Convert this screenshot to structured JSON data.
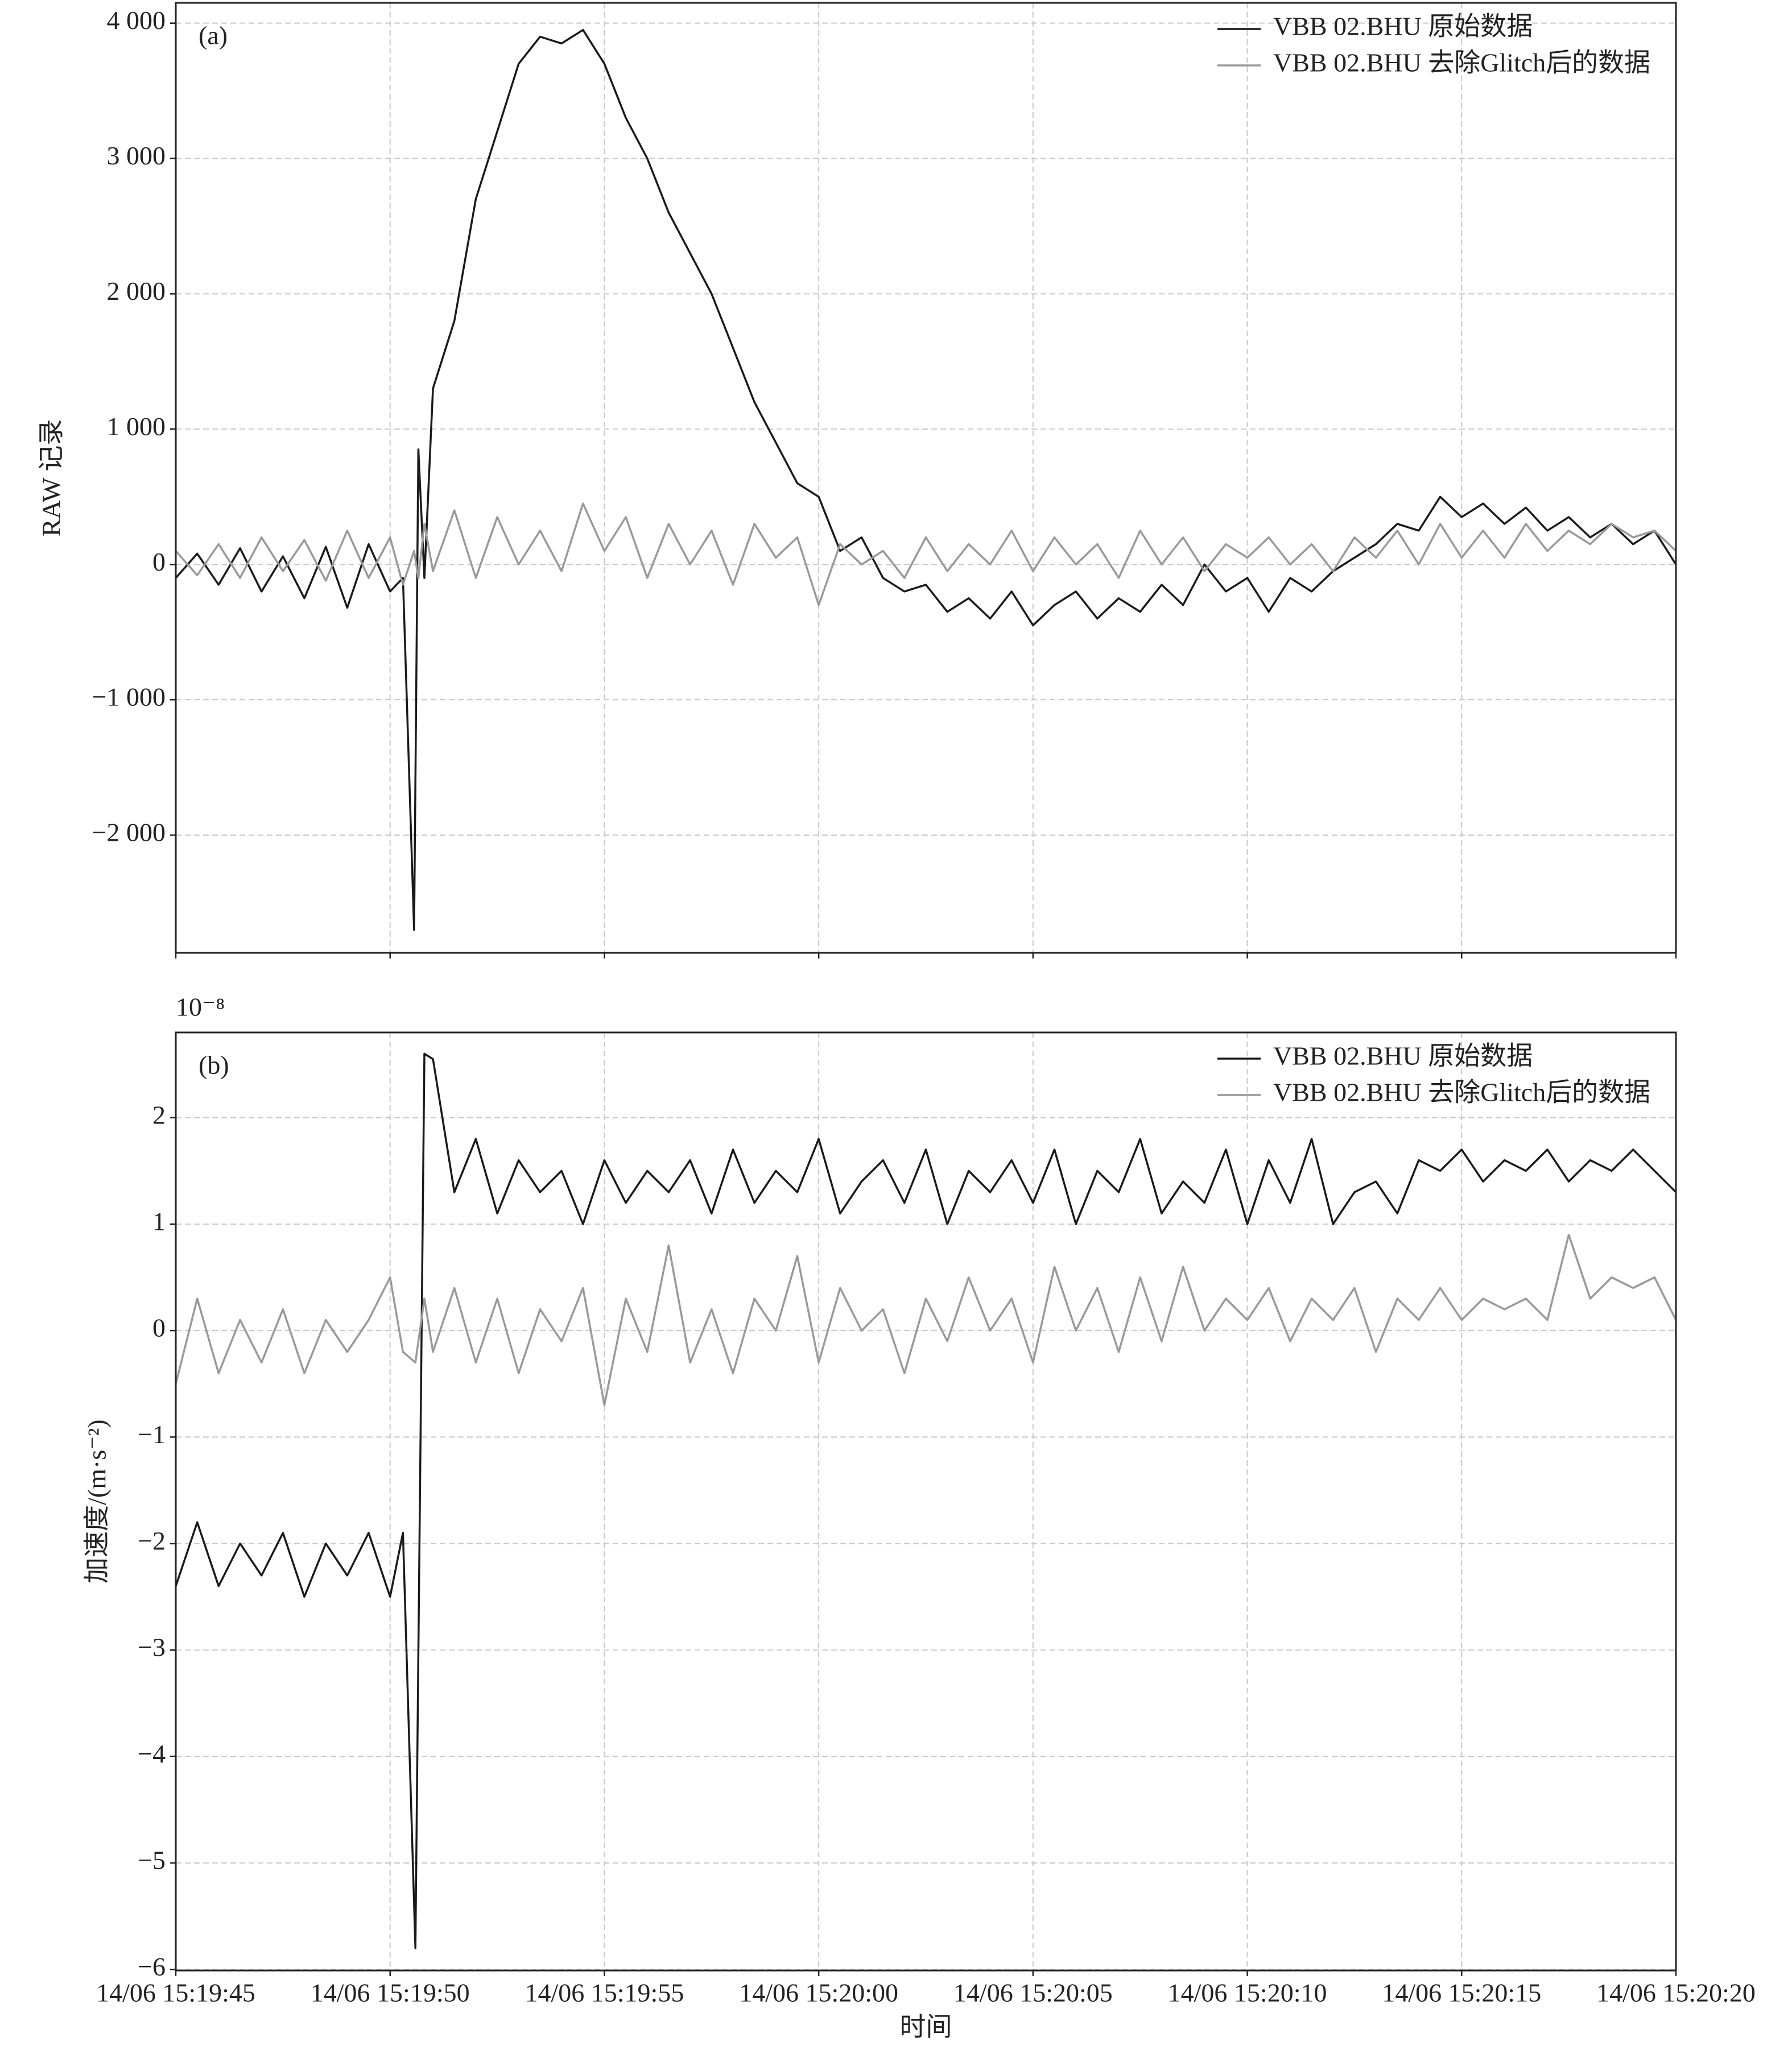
{
  "chart_data": [
    {
      "type": "line",
      "panel_label": "(a)",
      "ylabel": "RAW 记录",
      "xlim": [
        0,
        35
      ],
      "xticks": [
        0,
        5,
        10,
        15,
        20,
        25,
        30,
        35
      ],
      "ylim": [
        -2870,
        4150
      ],
      "yticks": [
        {
          "value": -2000,
          "label": "−2 000"
        },
        {
          "value": -1000,
          "label": "−1 000"
        },
        0,
        {
          "value": 1000,
          "label": "1 000"
        },
        {
          "value": 2000,
          "label": "2 000"
        },
        {
          "value": 3000,
          "label": "3 000"
        },
        {
          "value": 4000,
          "label": "4 000"
        }
      ],
      "grid": true,
      "legend": "upper-right",
      "x": [
        0,
        0.5,
        1,
        1.5,
        2,
        2.5,
        3,
        3.5,
        4,
        4.5,
        5,
        5.3,
        5.56,
        5.66,
        5.8,
        6,
        6.5,
        7,
        7.5,
        8,
        8.5,
        9,
        9.5,
        10,
        10.5,
        11,
        11.5,
        12,
        12.5,
        13,
        13.5,
        14,
        14.5,
        15,
        15.5,
        16,
        16.5,
        17,
        17.5,
        18,
        18.5,
        19,
        19.5,
        20,
        20.5,
        21,
        21.5,
        22,
        22.5,
        23,
        23.5,
        24,
        24.5,
        25,
        25.5,
        26,
        26.5,
        27,
        27.5,
        28,
        28.5,
        29,
        29.5,
        30,
        30.5,
        31,
        31.5,
        32,
        32.5,
        33,
        33.5,
        34,
        34.5,
        35
      ],
      "series": [
        {
          "name": "VBB 02.BHU 原始数据",
          "color": "#1a1a1a",
          "values": [
            -100,
            80,
            -150,
            120,
            -200,
            60,
            -250,
            130,
            -320,
            150,
            -200,
            -100,
            -2700,
            850,
            -100,
            1300,
            1800,
            2700,
            3200,
            3700,
            3900,
            3850,
            3950,
            3700,
            3300,
            3000,
            2600,
            2300,
            2000,
            1600,
            1200,
            900,
            600,
            500,
            100,
            200,
            -100,
            -200,
            -150,
            -350,
            -250,
            -400,
            -200,
            -450,
            -300,
            -200,
            -400,
            -250,
            -350,
            -150,
            -300,
            0,
            -200,
            -100,
            -350,
            -100,
            -200,
            -50,
            50,
            150,
            300,
            250,
            500,
            350,
            450,
            300,
            420,
            250,
            350,
            200,
            300,
            150,
            250,
            0
          ]
        },
        {
          "name": "VBB 02.BHU 去除Glitch后的数据",
          "color": "#999999",
          "values": [
            100,
            -80,
            150,
            -100,
            200,
            -50,
            180,
            -120,
            250,
            -100,
            200,
            -150,
            100,
            -100,
            300,
            -50,
            400,
            -100,
            350,
            0,
            250,
            -50,
            450,
            100,
            350,
            -100,
            300,
            0,
            250,
            -150,
            300,
            50,
            200,
            -300,
            150,
            0,
            100,
            -100,
            200,
            -50,
            150,
            0,
            250,
            -50,
            200,
            0,
            150,
            -100,
            250,
            0,
            200,
            -50,
            150,
            50,
            200,
            0,
            150,
            -50,
            200,
            50,
            250,
            0,
            300,
            50,
            250,
            50,
            300,
            100,
            250,
            150,
            300,
            200,
            250,
            100
          ]
        }
      ]
    },
    {
      "type": "line",
      "panel_label": "(b)",
      "ylabel": "加速度/(m·s⁻²)",
      "offset_label": "10⁻⁸",
      "xlabel": "时间",
      "xlim": [
        0,
        35
      ],
      "xticks": [
        {
          "value": 0,
          "label": "14/06 15:19:45"
        },
        {
          "value": 5,
          "label": "14/06 15:19:50"
        },
        {
          "value": 10,
          "label": "14/06 15:19:55"
        },
        {
          "value": 15,
          "label": "14/06 15:20:00"
        },
        {
          "value": 20,
          "label": "14/06 15:20:05"
        },
        {
          "value": 25,
          "label": "14/06 15:20:10"
        },
        {
          "value": 30,
          "label": "14/06 15:20:15"
        },
        {
          "value": 35,
          "label": "14/06 15:20:20"
        }
      ],
      "ylim": [
        -6.01,
        2.8
      ],
      "yticks": [
        {
          "value": -6,
          "label": "−6"
        },
        {
          "value": -5,
          "label": "−5"
        },
        {
          "value": -4,
          "label": "−4"
        },
        {
          "value": -3,
          "label": "−3"
        },
        {
          "value": -2,
          "label": "−2"
        },
        {
          "value": -1,
          "label": "−1"
        },
        0,
        1,
        2
      ],
      "grid": true,
      "legend": "upper-right",
      "x": [
        0,
        0.5,
        1,
        1.5,
        2,
        2.5,
        3,
        3.5,
        4,
        4.5,
        5,
        5.3,
        5.59,
        5.8,
        6,
        6.5,
        7,
        7.5,
        8,
        8.5,
        9,
        9.5,
        10,
        10.5,
        11,
        11.5,
        12,
        12.5,
        13,
        13.5,
        14,
        14.5,
        15,
        15.5,
        16,
        16.5,
        17,
        17.5,
        18,
        18.5,
        19,
        19.5,
        20,
        20.5,
        21,
        21.5,
        22,
        22.5,
        23,
        23.5,
        24,
        24.5,
        25,
        25.5,
        26,
        26.5,
        27,
        27.5,
        28,
        28.5,
        29,
        29.5,
        30,
        30.5,
        31,
        31.5,
        32,
        32.5,
        33,
        33.5,
        34,
        34.5,
        35
      ],
      "series": [
        {
          "name": "VBB 02.BHU 原始数据",
          "color": "#1a1a1a",
          "values": [
            -2.4,
            -1.8,
            -2.4,
            -2.0,
            -2.3,
            -1.9,
            -2.5,
            -2.0,
            -2.3,
            -1.9,
            -2.5,
            -1.9,
            -5.8,
            2.6,
            2.55,
            1.3,
            1.8,
            1.1,
            1.6,
            1.3,
            1.5,
            1.0,
            1.6,
            1.2,
            1.5,
            1.3,
            1.6,
            1.1,
            1.7,
            1.2,
            1.5,
            1.3,
            1.8,
            1.1,
            1.4,
            1.6,
            1.2,
            1.7,
            1.0,
            1.5,
            1.3,
            1.6,
            1.2,
            1.7,
            1.0,
            1.5,
            1.3,
            1.8,
            1.1,
            1.4,
            1.2,
            1.7,
            1.0,
            1.6,
            1.2,
            1.8,
            1.0,
            1.3,
            1.4,
            1.1,
            1.6,
            1.5,
            1.7,
            1.4,
            1.6,
            1.5,
            1.7,
            1.4,
            1.6,
            1.5,
            1.7,
            1.5,
            1.3
          ]
        },
        {
          "name": "VBB 02.BHU 去除Glitch后的数据",
          "color": "#999999",
          "values": [
            -0.5,
            0.3,
            -0.4,
            0.1,
            -0.3,
            0.2,
            -0.4,
            0.1,
            -0.2,
            0.1,
            0.5,
            -0.2,
            -0.3,
            0.3,
            -0.2,
            0.4,
            -0.3,
            0.3,
            -0.4,
            0.2,
            -0.1,
            0.4,
            -0.7,
            0.3,
            -0.2,
            0.8,
            -0.3,
            0.2,
            -0.4,
            0.3,
            0.0,
            0.7,
            -0.3,
            0.4,
            0.0,
            0.2,
            -0.4,
            0.3,
            -0.1,
            0.5,
            0.0,
            0.3,
            -0.3,
            0.6,
            0.0,
            0.4,
            -0.2,
            0.5,
            -0.1,
            0.6,
            0.0,
            0.3,
            0.1,
            0.4,
            -0.1,
            0.3,
            0.1,
            0.4,
            -0.2,
            0.3,
            0.1,
            0.4,
            0.1,
            0.3,
            0.2,
            0.3,
            0.1,
            0.9,
            0.3,
            0.5,
            0.4,
            0.5,
            0.1
          ]
        }
      ]
    }
  ]
}
